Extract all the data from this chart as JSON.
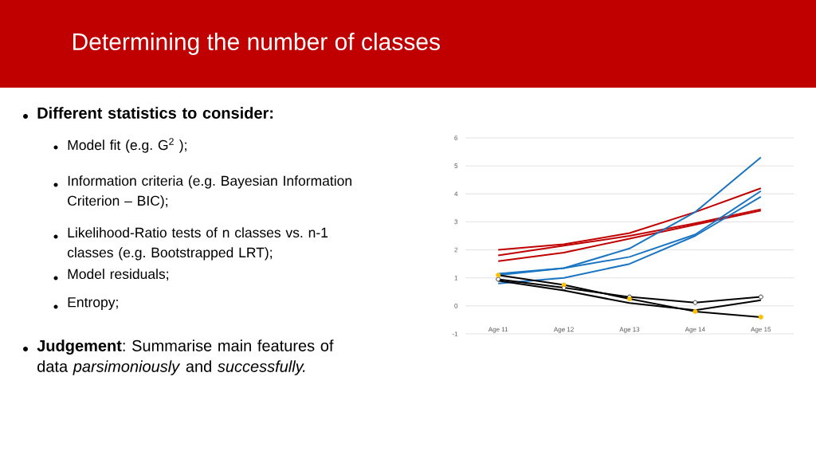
{
  "chart_data": {
    "type": "line",
    "title": "Determining the number of classes",
    "annotations": [
      "**Different statistics to consider:**",
      "Model fit (e.g. G$^{2}$ );",
      "Information criteria (e.g. Bayesian Information Criterion – BIC);",
      "Likelihood-Ratio tests of n classes vs. n-1 classes (e.g. Bootstrapped LRT);",
      "Model residuals;",
      "Entropy;",
      "**Judgement**: Summarise main features of data *parsimoniously* and *successfully.*"
    ],
    "categories": [
      "Age 11",
      "Age 12",
      "Age 13",
      "Age 14",
      "Age 15"
    ],
    "series": [
      {
        "color": "#c00000",
        "values": [
          2.0,
          2.2,
          2.6,
          3.35,
          4.2
        ]
      },
      {
        "color": "#c00000",
        "values": [
          1.8,
          2.15,
          2.5,
          2.95,
          3.45
        ]
      },
      {
        "color": "#c00000",
        "values": [
          1.6,
          1.9,
          2.4,
          2.9,
          3.4
        ]
      },
      {
        "color": "#1a75c2",
        "values": [
          1.15,
          1.35,
          2.05,
          3.35,
          5.3
        ]
      },
      {
        "color": "#1a75c2",
        "values": [
          1.1,
          1.35,
          1.75,
          2.55,
          4.1
        ]
      },
      {
        "color": "#1a75c2",
        "values": [
          0.8,
          1.0,
          1.5,
          2.5,
          3.9
        ]
      },
      {
        "color": "#000000",
        "marker": "circle",
        "values": [
          0.95,
          0.65,
          0.32,
          0.12,
          0.32
        ]
      },
      {
        "color": "#000000",
        "values": [
          1.1,
          0.75,
          0.25,
          -0.2,
          -0.4
        ]
      },
      {
        "color": "#000000",
        "values": [
          0.9,
          0.55,
          0.1,
          -0.15,
          0.2
        ]
      },
      {
        "type": "scatter",
        "color": "#ffc000",
        "values": [
          1.1,
          0.75,
          0.25,
          -0.2,
          -0.4
        ]
      }
    ],
    "ylim": [
      -1,
      6
    ],
    "yticks": [
      -1,
      0,
      1,
      2,
      3,
      4,
      5,
      6
    ],
    "grid": "y"
  }
}
